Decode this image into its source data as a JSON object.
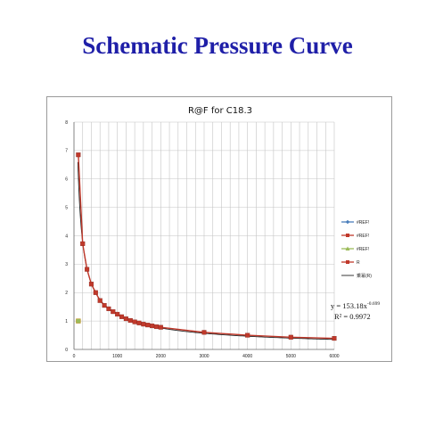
{
  "page": {
    "title": "Schematic Pressure Curve"
  },
  "chart_data": {
    "type": "scatter",
    "title": "R@F  for C18.3",
    "xlabel": "",
    "ylabel": "",
    "xlim": [
      0,
      6000
    ],
    "ylim": [
      0,
      8
    ],
    "x_ticks": [
      0,
      1000,
      2000,
      3000,
      4000,
      5000,
      6000
    ],
    "y_ticks": [
      0,
      1,
      2,
      3,
      4,
      5,
      6,
      7,
      8
    ],
    "grid": true,
    "legend_position": "right",
    "legend": [
      {
        "label": "#REF!",
        "color": "#4a7ebb",
        "marker": "diamond"
      },
      {
        "label": "#REF!",
        "color": "#c0392b",
        "marker": "square"
      },
      {
        "label": "#REF!",
        "color": "#9bbb59",
        "marker": "triangle"
      },
      {
        "label": "R",
        "color": "#c0392b",
        "marker": "square"
      },
      {
        "label": "乘幂(R)",
        "color": "#222222",
        "marker": "line"
      }
    ],
    "series": [
      {
        "name": "R",
        "color": "#c0392b",
        "points": [
          [
            100,
            6.85
          ],
          [
            200,
            3.72
          ],
          [
            300,
            2.82
          ],
          [
            400,
            2.3
          ],
          [
            500,
            2.0
          ],
          [
            600,
            1.72
          ],
          [
            700,
            1.55
          ],
          [
            800,
            1.43
          ],
          [
            900,
            1.33
          ],
          [
            1000,
            1.24
          ],
          [
            1100,
            1.15
          ],
          [
            1200,
            1.08
          ],
          [
            1300,
            1.02
          ],
          [
            1400,
            0.97
          ],
          [
            1500,
            0.93
          ],
          [
            1600,
            0.89
          ],
          [
            1700,
            0.86
          ],
          [
            1800,
            0.83
          ],
          [
            1900,
            0.8
          ],
          [
            2000,
            0.78
          ],
          [
            3000,
            0.6
          ],
          [
            4000,
            0.5
          ],
          [
            5000,
            0.43
          ],
          [
            6000,
            0.39
          ]
        ]
      },
      {
        "name": "#REF!",
        "color": "#9bbb59",
        "points": [
          [
            100,
            1.0
          ]
        ]
      }
    ],
    "trendline": {
      "type": "power",
      "name": "乘幂(R)",
      "coefficient": 153.18,
      "exponent": -0.699,
      "color": "#222222"
    },
    "annotation": {
      "equation_base": "y = 153.18x",
      "equation_exp": "-0.699",
      "r_squared": "R² = 0.9972"
    }
  }
}
